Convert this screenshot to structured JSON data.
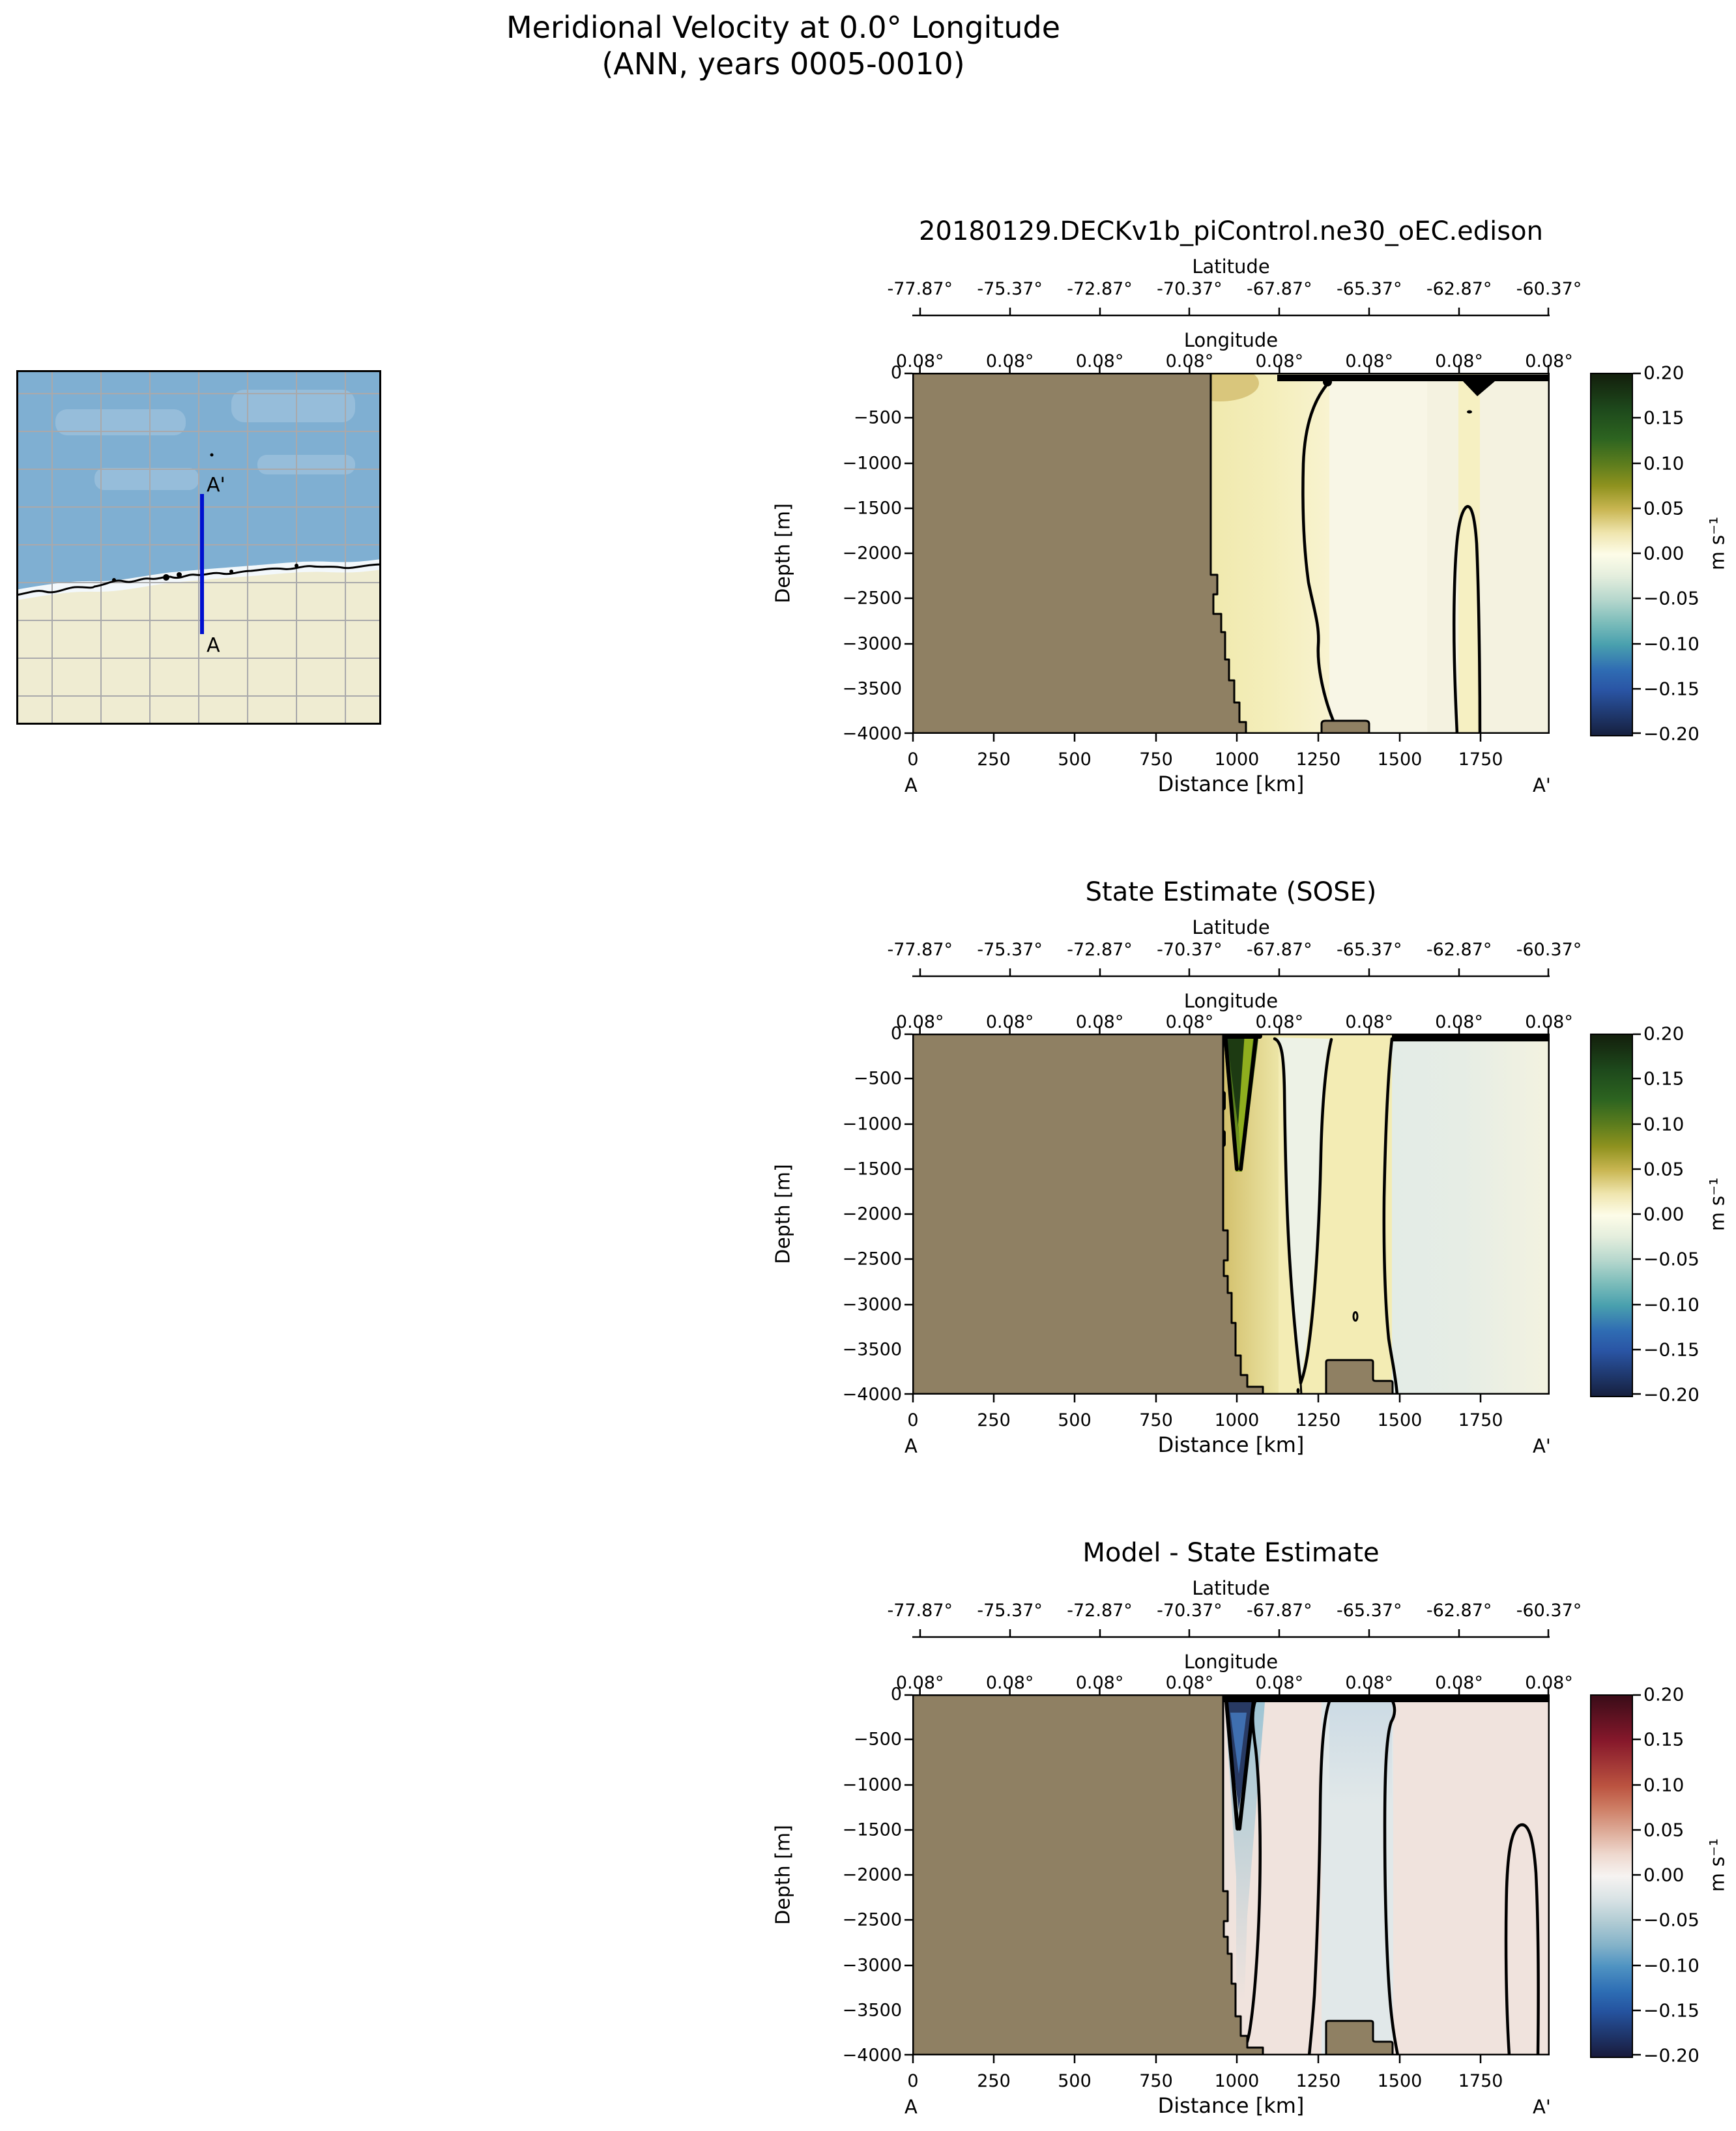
{
  "figure": {
    "title_line1": "Meridional Velocity at 0.0° Longitude",
    "title_line2": "(ANN, years 0005-0010)"
  },
  "map_inset": {
    "section_start": "A",
    "section_end": "A'"
  },
  "axes": {
    "latitude_label": "Latitude",
    "longitude_label": "Longitude",
    "depth_label": "Depth [m]",
    "distance_label": "Distance [km]",
    "lat_ticks": [
      "-77.87°",
      "-75.37°",
      "-72.87°",
      "-70.37°",
      "-67.87°",
      "-65.37°",
      "-62.87°",
      "-60.37°"
    ],
    "lon_ticks": [
      "0.08°",
      "0.08°",
      "0.08°",
      "0.08°",
      "0.08°",
      "0.08°",
      "0.08°",
      "0.08°"
    ],
    "depth_ticks": [
      "0",
      "−500",
      "−1000",
      "−1500",
      "−2000",
      "−2500",
      "−3000",
      "−3500",
      "−4000"
    ],
    "distance_ticks": [
      "0",
      "250",
      "500",
      "750",
      "1000",
      "1250",
      "1500",
      "1750"
    ],
    "section_start": "A",
    "section_end": "A'"
  },
  "colorbar": {
    "unit": "m s⁻¹",
    "ticks": [
      "0.20",
      "0.15",
      "0.10",
      "0.05",
      "0.00",
      "−0.05",
      "−0.10",
      "−0.15",
      "−0.20"
    ]
  },
  "panels": [
    {
      "title": "20180129.DECKv1b_piControl.ne30_oEC.edison"
    },
    {
      "title": "State Estimate (SOSE)"
    },
    {
      "title": "Model - State Estimate"
    }
  ],
  "colors": {
    "land_mask": "#8f8063",
    "map_ocean": "#7fafd2",
    "map_land": "#efecd2",
    "section_line": "#0010d0",
    "cmap_positive_extreme": "#131f0c",
    "cmap_negative_extreme": "#16203f",
    "diff_positive_extreme": "#3a0c18",
    "diff_negative_extreme": "#191b3c"
  },
  "chart_data": {
    "type": "heatmap",
    "subtype": "ocean depth-distance contour sections, 3 stacked panels sharing axes",
    "figure_title": "Meridional Velocity at 0.0° Longitude (ANN, years 0005-0010)",
    "x": {
      "label": "Distance [km]",
      "min": 0,
      "max": 1960,
      "ticks": [
        0,
        250,
        500,
        750,
        1000,
        1250,
        1500,
        1750
      ]
    },
    "y": {
      "label": "Depth [m]",
      "min": -4000,
      "max": 0,
      "ticks": [
        0,
        -500,
        -1000,
        -1500,
        -2000,
        -2500,
        -3000,
        -3500,
        -4000
      ]
    },
    "secondary_x": [
      {
        "label": "Latitude",
        "ticks": [
          -77.87,
          -75.37,
          -72.87,
          -70.37,
          -67.87,
          -65.37,
          -62.87,
          -60.37
        ]
      },
      {
        "label": "Longitude",
        "ticks": [
          0.08,
          0.08,
          0.08,
          0.08,
          0.08,
          0.08,
          0.08,
          0.08
        ]
      }
    ],
    "colorbar": {
      "label": "m s⁻¹",
      "min": -0.2,
      "max": 0.2,
      "ticks": [
        0.2,
        0.15,
        0.1,
        0.05,
        0.0,
        -0.05,
        -0.1,
        -0.15,
        -0.2
      ]
    },
    "section": {
      "start": "A",
      "end": "A'",
      "longitude_of_section": "0.0°"
    },
    "panels": [
      {
        "title": "20180129.DECKv1b_piControl.ne30_oEC.edison",
        "colormap": "green(+) / ivory(0) / blue(-)",
        "features": [
          "land-bathymetry mask from 0 to ~920 km; shelf wall near 920 km, floor steps down to -4000 m",
          "weak positive band (~0 to +0.03 m/s, pale yellow) between ~920 and ~1280 km, full depth",
          "near-zero ivory field east of ~1280 km",
          "zero contour descending from surface near 1280 km to seamount at ~1310 km",
          "narrow closed positive band near 1680-1750 km below ~-1450 m",
          "small seamount ridge ~1270-1410 km near -3900 m",
          "zero contour bunched along the surface east of ~1120 km"
        ]
      },
      {
        "title": "State Estimate (SOSE)",
        "colormap": "green(+) / ivory(0) / blue(-)",
        "features": [
          "strong narrow positive jet (up to ~+0.2 m/s, dark green) at ~960-1060 km, surface to ~-1500 m",
          "positive (~+0.05 m/s) khaki column along continental slope ~950-1120 km, full depth",
          "near-zero pale tongue ~1130-1260 km pinching toward bottom near 1200 km",
          "positive (~+0.02 m/s) band ~1280-1470 km",
          "weak negative (~-0.02 m/s) pale cyan region ~1500-1850 km",
          "bottom ridge ~1270-1480 km rising to ~-3500 m with step on its east side",
          "zero contour along the surface east of ~1470 km"
        ]
      },
      {
        "title": "Model - State Estimate",
        "colormap": "red(+) / white(0) / blue(-) balance",
        "features": [
          "strong negative difference (~-0.2 m/s, navy wedge) at ~960-1060 km near surface (model lacks SOSE jet)",
          "negative streak along the slope down to ~-2600 m",
          "weak negative (~-0.02 m/s) column between zero contours near 1280 km and 1520 km, full depth",
          "weak positive (~+0.01 to +0.02 m/s) pale pink field elsewhere",
          "closed zero-contour lobe near 1830-1930 km below ~-1300 m",
          "same bathymetry: land to ~950 km, bottom ridge ~1270-1480 km"
        ]
      }
    ]
  }
}
